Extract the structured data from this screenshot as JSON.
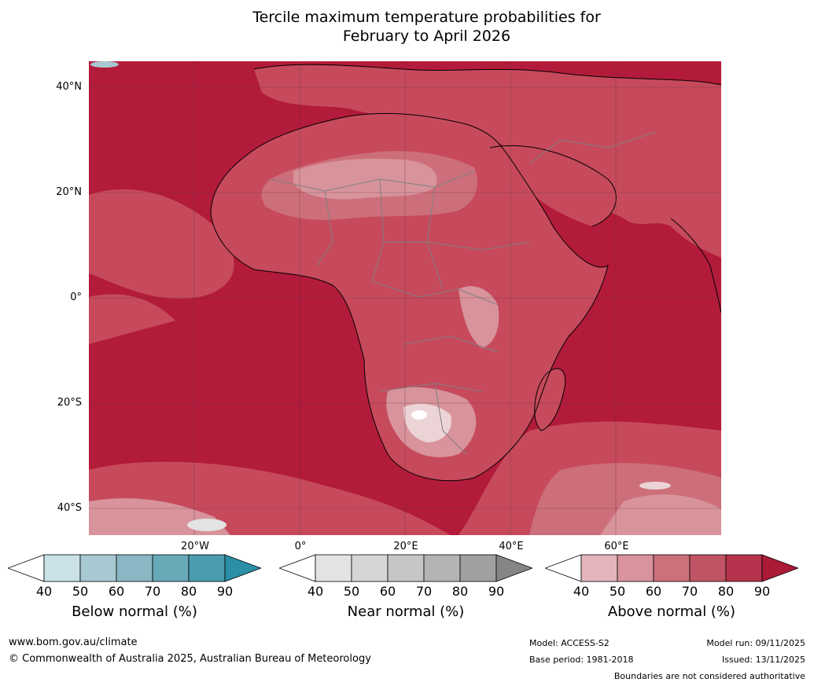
{
  "title": {
    "line1": "Tercile maximum temperature probabilities for",
    "line2": "February to April 2026"
  },
  "map": {
    "lat_labels": [
      "40°N",
      "20°N",
      "0°",
      "20°S",
      "40°S"
    ],
    "lon_labels": [
      "20°W",
      "0°",
      "20°E",
      "40°E",
      "60°E"
    ],
    "colors": {
      "ocean_hot": "#b31b3a",
      "warm": "#c64a5c",
      "mid": "#cd6f7a",
      "light": "#d8939b",
      "pale": "#e3b7bc",
      "very_pale": "#ecd3d6",
      "coast": "#000000",
      "border": "#808080",
      "grid": "#5a3040"
    }
  },
  "legends": [
    {
      "id": "below",
      "title": "Below normal (%)",
      "ticks": [
        "40",
        "50",
        "60",
        "70",
        "80",
        "90"
      ],
      "colors": [
        "#ffffff",
        "#c9e1e7",
        "#a8c9d1",
        "#89b7c3",
        "#68a9b8",
        "#4a9db1",
        "#2b8fa6"
      ]
    },
    {
      "id": "near",
      "title": "Near normal (%)",
      "ticks": [
        "40",
        "50",
        "60",
        "70",
        "80",
        "90"
      ],
      "colors": [
        "#ffffff",
        "#e3e3e3",
        "#d5d5d5",
        "#c6c6c6",
        "#b4b4b4",
        "#a0a0a0",
        "#858585"
      ]
    },
    {
      "id": "above",
      "title": "Above normal (%)",
      "ticks": [
        "40",
        "50",
        "60",
        "70",
        "80",
        "90"
      ],
      "colors": [
        "#ffffff",
        "#e4b5bb",
        "#d8939c",
        "#cc707b",
        "#c05465",
        "#b5334c",
        "#ab1a37"
      ]
    }
  ],
  "footer": {
    "website": "www.bom.gov.au/climate",
    "copyright": "© Commonwealth of Australia 2025, Australian Bureau of Meteorology",
    "model": "Model: ACCESS-S2",
    "base_period": "Base period: 1981-2018",
    "model_run": "Model run: 09/11/2025",
    "issued": "Issued: 13/11/2025",
    "disclaimer": "Boundaries are not considered authoritative"
  }
}
